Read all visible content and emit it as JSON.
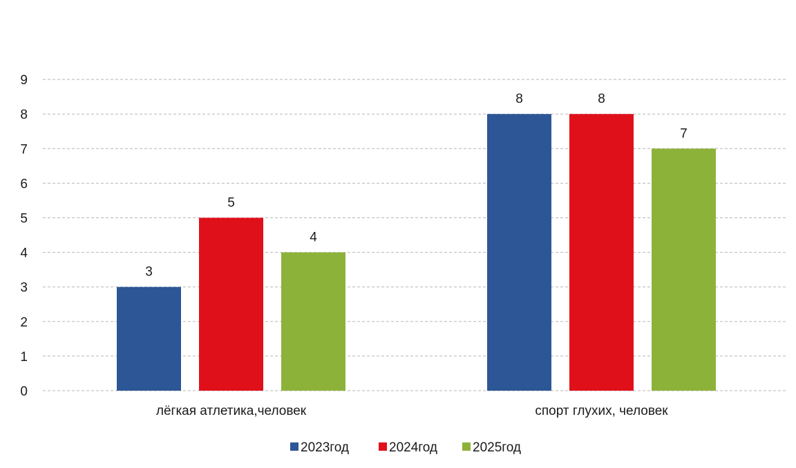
{
  "chart_data": {
    "type": "bar",
    "categories": [
      "лёгкая атлетика,человек",
      "спорт глухих, человек"
    ],
    "series": [
      {
        "name": "2023год",
        "values": [
          3,
          8
        ],
        "color": "#2c5696"
      },
      {
        "name": "2024год",
        "values": [
          5,
          8
        ],
        "color": "#e0101b"
      },
      {
        "name": "2025год",
        "values": [
          4,
          7
        ],
        "color": "#8db23a"
      }
    ],
    "y_ticks": [
      "0",
      "1",
      "2",
      "3",
      "4",
      "5",
      "6",
      "7",
      "8",
      "9"
    ],
    "ylim": [
      0,
      9
    ],
    "grid": true,
    "legend_position": "bottom",
    "data_labels": true
  }
}
